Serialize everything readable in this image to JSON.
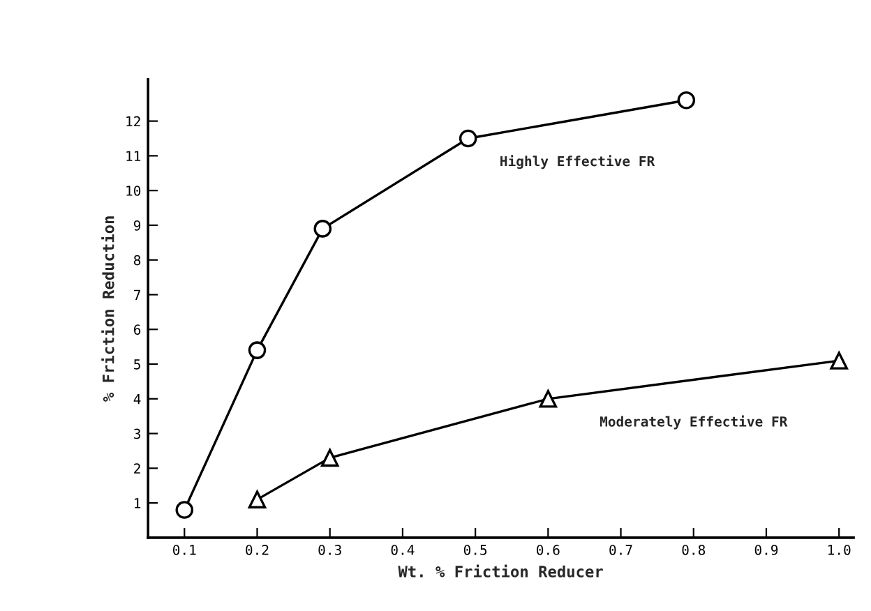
{
  "chart_data": {
    "type": "line",
    "xlabel": "Wt. % Friction Reducer",
    "ylabel": "% Friction Reduction",
    "xlim": [
      0.05,
      1.02
    ],
    "ylim": [
      0,
      13.2
    ],
    "xticks": [
      {
        "value": 0.1,
        "label": "0.1"
      },
      {
        "value": 0.2,
        "label": "0.2"
      },
      {
        "value": 0.3,
        "label": "0.3"
      },
      {
        "value": 0.4,
        "label": "0.4"
      },
      {
        "value": 0.5,
        "label": "0.5"
      },
      {
        "value": 0.6,
        "label": "0.6"
      },
      {
        "value": 0.7,
        "label": "0.7"
      },
      {
        "value": 0.8,
        "label": "0.8"
      },
      {
        "value": 0.9,
        "label": "0.9"
      },
      {
        "value": 1.0,
        "label": "1.0"
      }
    ],
    "yticks": [
      1,
      2,
      3,
      4,
      5,
      6,
      7,
      8,
      9,
      10,
      11,
      12
    ],
    "grid": false,
    "series": [
      {
        "name": "Highly Effective FR",
        "color": "#000000",
        "marker": "circle",
        "x": [
          0.1,
          0.2,
          0.29,
          0.49,
          0.79
        ],
        "values": [
          0.8,
          5.4,
          8.9,
          11.5,
          12.6
        ]
      },
      {
        "name": "Moderately Effective FR",
        "color": "#000000",
        "marker": "triangle",
        "x": [
          0.2,
          0.3,
          0.6,
          1.0
        ],
        "values": [
          1.1,
          2.3,
          4.0,
          5.1
        ]
      }
    ]
  }
}
